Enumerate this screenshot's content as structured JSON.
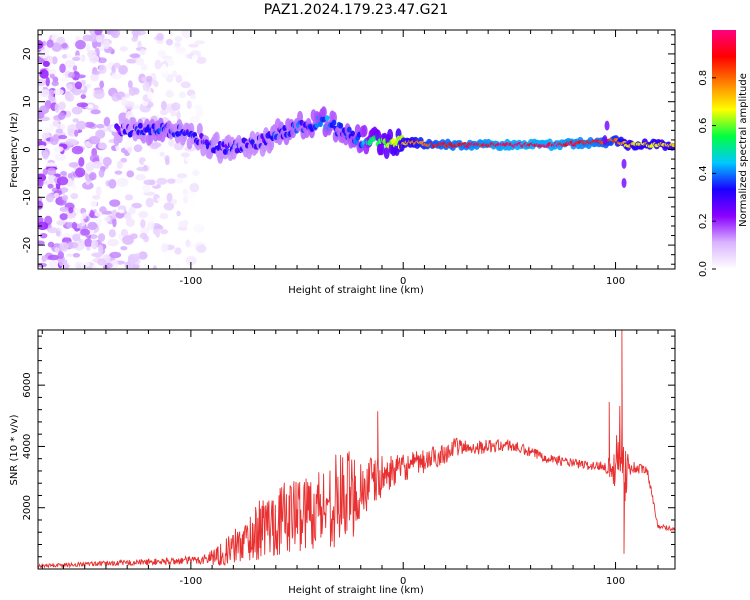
{
  "title": "PAZ1.2024.179.23.47.G21",
  "chart_data": [
    {
      "type": "heatmap",
      "xlabel": "Height of straight line (km)",
      "ylabel": "Frequency (Hz)",
      "xlim": [
        -172,
        128
      ],
      "ylim": [
        -25,
        25
      ],
      "xticks": [
        -100,
        0,
        100
      ],
      "yticks": [
        -20,
        -10,
        0,
        10,
        20
      ],
      "colorbar": {
        "label": "Normalized spectral amplitude",
        "ticks": [
          "0.0",
          "0.2",
          "0.4",
          "0.6",
          "0.8"
        ],
        "range": [
          0,
          1
        ],
        "colormap": "rainbow",
        "stops": [
          "#ffffff",
          "#d9b3ff",
          "#8a00ff",
          "#1a00ff",
          "#00c8ff",
          "#00ff40",
          "#ffff00",
          "#ff8000",
          "#ff0000",
          "#ff0080"
        ]
      },
      "ridge": {
        "description_free": true,
        "x": [
          -135,
          -125,
          -115,
          -105,
          -95,
          -85,
          -75,
          -65,
          -55,
          -45,
          -38,
          -30,
          -20,
          -12,
          -5,
          0,
          5,
          15,
          30,
          50,
          70,
          90,
          95,
          100,
          105,
          115,
          128
        ],
        "y": [
          4,
          4,
          4,
          4,
          2,
          0,
          1,
          2,
          4,
          5,
          6,
          4,
          2,
          2,
          1,
          1.5,
          1.5,
          1,
          1,
          1,
          1,
          1.5,
          1.5,
          2,
          1,
          1,
          1
        ],
        "amplitude": [
          0.25,
          0.3,
          0.35,
          0.3,
          0.3,
          0.3,
          0.3,
          0.3,
          0.35,
          0.35,
          0.4,
          0.35,
          0.4,
          0.55,
          0.6,
          0.7,
          0.75,
          0.85,
          0.9,
          0.95,
          0.95,
          0.9,
          0.85,
          0.8,
          0.7,
          0.7,
          0.7
        ]
      },
      "noise_region_x": [
        -172,
        -95
      ]
    },
    {
      "type": "line",
      "xlabel": "Height of straight line (km)",
      "ylabel": "SNR (10 * v/v)",
      "xlim": [
        -172,
        128
      ],
      "ylim": [
        0,
        7800
      ],
      "xticks": [
        -100,
        0,
        100
      ],
      "yticks": [
        2000,
        4000,
        6000
      ],
      "color": "#e83030",
      "envelope": {
        "x": [
          -172,
          -140,
          -110,
          -95,
          -85,
          -75,
          -65,
          -55,
          -45,
          -35,
          -30,
          -25,
          -20,
          -15,
          -10,
          -5,
          0,
          10,
          20,
          25,
          30,
          40,
          50,
          60,
          70,
          80,
          90,
          95,
          100,
          102,
          104,
          107,
          110,
          115,
          120,
          128
        ],
        "y": [
          100,
          180,
          250,
          300,
          500,
          900,
          1400,
          1700,
          1900,
          2100,
          2300,
          2400,
          2600,
          2800,
          3000,
          3200,
          3300,
          3500,
          3800,
          4000,
          3950,
          4000,
          4050,
          3800,
          3600,
          3450,
          3350,
          3400,
          3200,
          4600,
          3200,
          3300,
          3300,
          3200,
          1400,
          1300
        ],
        "noise_amplitude": [
          60,
          80,
          120,
          150,
          400,
          700,
          1100,
          1200,
          1300,
          1400,
          1600,
          1500,
          1200,
          900,
          700,
          500,
          450,
          400,
          350,
          300,
          250,
          220,
          200,
          180,
          160,
          150,
          150,
          200,
          600,
          1500,
          1200,
          250,
          200,
          150,
          80,
          70
        ]
      },
      "spikes": [
        {
          "x": -12,
          "y": 5150
        },
        {
          "x": 97,
          "y": 5450
        },
        {
          "x": 103,
          "y": 7800
        },
        {
          "x": 104,
          "y": 500
        }
      ]
    }
  ]
}
